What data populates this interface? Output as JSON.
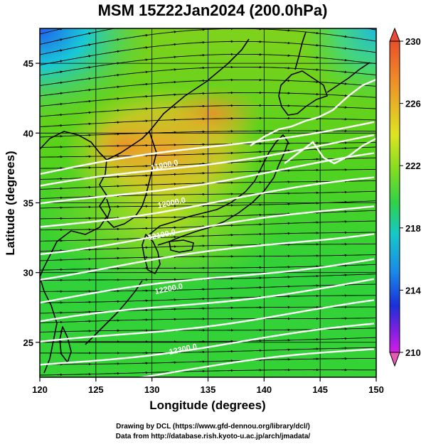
{
  "figure": {
    "title": "MSM 15Z22Jan2024 (200.0hPa)",
    "xlabel": "Longitude (degrees)",
    "ylabel": "Latitude  (degrees)",
    "xticks": [
      "120",
      "125",
      "130",
      "135",
      "140",
      "145",
      "150"
    ],
    "yticks": [
      "25",
      "30",
      "35",
      "40",
      "45"
    ],
    "colorbar_ticks": [
      "230",
      "226",
      "222",
      "218",
      "214",
      "210"
    ],
    "contour_labels": [
      "11900.0",
      "12000.0",
      "12100.0",
      "12200.0",
      "12300.0"
    ],
    "credit_line1": "Drawing by DCL (https://www.gfd-dennou.org/library/dcl/)",
    "credit_line2": "Data from http://database.rish.kyoto-u.ac.jp/arch/jmadata/"
  },
  "chart_data": {
    "type": "heatmap",
    "variable": "temperature shading with height contours and streamlines",
    "xlim": [
      120,
      150
    ],
    "ylim": [
      22.5,
      47.5
    ],
    "colorbar_range": [
      210,
      230
    ],
    "contour_levels": [
      11900,
      12000,
      12100,
      12200,
      12300
    ],
    "colors": {
      "high": "#e8502a",
      "warm": "#f39a2a",
      "mid": "#9ad81e",
      "green": "#3cd23c",
      "cyan": "#12c8dc",
      "blue": "#1a3ee0",
      "low": "#d21ee6"
    }
  }
}
